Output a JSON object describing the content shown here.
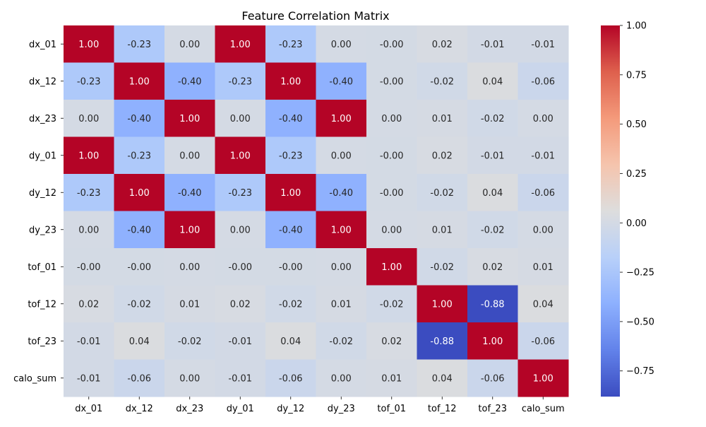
{
  "chart_data": {
    "type": "heatmap",
    "title": "Feature Correlation Matrix",
    "xlabel": "",
    "ylabel": "",
    "x_labels": [
      "dx_01",
      "dx_12",
      "dx_23",
      "dy_01",
      "dy_12",
      "dy_23",
      "tof_01",
      "tof_12",
      "tof_23",
      "calo_sum"
    ],
    "y_labels": [
      "dx_01",
      "dx_12",
      "dx_23",
      "dy_01",
      "dy_12",
      "dy_23",
      "tof_01",
      "tof_12",
      "tof_23",
      "calo_sum"
    ],
    "values": [
      [
        1.0,
        -0.23,
        0.0,
        1.0,
        -0.23,
        0.0,
        -0.001,
        0.02,
        -0.01,
        -0.01
      ],
      [
        -0.23,
        1.0,
        -0.4,
        -0.23,
        1.0,
        -0.4,
        -0.001,
        -0.02,
        0.04,
        -0.06
      ],
      [
        0.0,
        -0.4,
        1.0,
        0.0,
        -0.4,
        1.0,
        0.0,
        0.01,
        -0.02,
        0.0
      ],
      [
        1.0,
        -0.23,
        0.0,
        1.0,
        -0.23,
        0.0,
        -0.001,
        0.02,
        -0.01,
        -0.01
      ],
      [
        -0.23,
        1.0,
        -0.4,
        -0.23,
        1.0,
        -0.4,
        -0.001,
        -0.02,
        0.04,
        -0.06
      ],
      [
        0.0,
        -0.4,
        1.0,
        0.0,
        -0.4,
        1.0,
        0.0,
        0.01,
        -0.02,
        0.0
      ],
      [
        -0.001,
        -0.001,
        0.0,
        -0.001,
        -0.001,
        0.0,
        1.0,
        -0.02,
        0.02,
        0.01
      ],
      [
        0.02,
        -0.02,
        0.01,
        0.02,
        -0.02,
        0.01,
        -0.02,
        1.0,
        -0.88,
        0.04
      ],
      [
        -0.01,
        0.04,
        -0.02,
        -0.01,
        0.04,
        -0.02,
        0.02,
        -0.88,
        1.0,
        -0.06
      ],
      [
        -0.01,
        -0.06,
        0.0,
        -0.01,
        -0.06,
        0.0,
        0.01,
        0.04,
        -0.06,
        1.0
      ]
    ],
    "cell_labels": [
      [
        "1.00",
        "-0.23",
        "0.00",
        "1.00",
        "-0.23",
        "0.00",
        "-0.00",
        "0.02",
        "-0.01",
        "-0.01"
      ],
      [
        "-0.23",
        "1.00",
        "-0.40",
        "-0.23",
        "1.00",
        "-0.40",
        "-0.00",
        "-0.02",
        "0.04",
        "-0.06"
      ],
      [
        "0.00",
        "-0.40",
        "1.00",
        "0.00",
        "-0.40",
        "1.00",
        "0.00",
        "0.01",
        "-0.02",
        "0.00"
      ],
      [
        "1.00",
        "-0.23",
        "0.00",
        "1.00",
        "-0.23",
        "0.00",
        "-0.00",
        "0.02",
        "-0.01",
        "-0.01"
      ],
      [
        "-0.23",
        "1.00",
        "-0.40",
        "-0.23",
        "1.00",
        "-0.40",
        "-0.00",
        "-0.02",
        "0.04",
        "-0.06"
      ],
      [
        "0.00",
        "-0.40",
        "1.00",
        "0.00",
        "-0.40",
        "1.00",
        "0.00",
        "0.01",
        "-0.02",
        "0.00"
      ],
      [
        "-0.00",
        "-0.00",
        "0.00",
        "-0.00",
        "-0.00",
        "0.00",
        "1.00",
        "-0.02",
        "0.02",
        "0.01"
      ],
      [
        "0.02",
        "-0.02",
        "0.01",
        "0.02",
        "-0.02",
        "0.01",
        "-0.02",
        "1.00",
        "-0.88",
        "0.04"
      ],
      [
        "-0.01",
        "0.04",
        "-0.02",
        "-0.01",
        "0.04",
        "-0.02",
        "0.02",
        "-0.88",
        "1.00",
        "-0.06"
      ],
      [
        "-0.01",
        "-0.06",
        "0.00",
        "-0.01",
        "-0.06",
        "0.00",
        "0.01",
        "0.04",
        "-0.06",
        "1.00"
      ]
    ],
    "colormap": "coolwarm",
    "vmin": -0.88,
    "vmax": 1.0,
    "colorbar": {
      "ticks": [
        1.0,
        0.75,
        0.5,
        0.25,
        0.0,
        -0.25,
        -0.5,
        -0.75
      ],
      "tick_labels": [
        "1.00",
        "0.75",
        "0.50",
        "0.25",
        "0.00",
        "−0.25",
        "−0.50",
        "−0.75"
      ],
      "placement": "right"
    },
    "grid": false
  }
}
